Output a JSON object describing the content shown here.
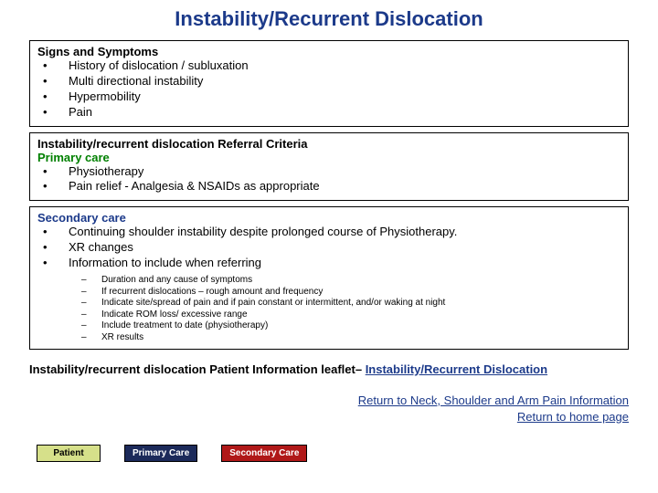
{
  "title": "Instability/Recurrent Dislocation",
  "box1": {
    "heading": "Signs and Symptoms",
    "items": [
      "History of dislocation / subluxation",
      "Multi directional instability",
      "Hypermobility",
      "Pain"
    ]
  },
  "box2": {
    "heading": "Instability/recurrent dislocation Referral Criteria",
    "subheading": "Primary care",
    "items": [
      "Physiotherapy",
      "Pain relief - Analgesia & NSAIDs as appropriate"
    ]
  },
  "box3": {
    "heading": "Secondary care",
    "items": [
      "Continuing shoulder instability despite prolonged course of Physiotherapy.",
      "XR changes",
      "Information to include when referring"
    ],
    "sub": [
      "Duration and any cause of symptoms",
      "If recurrent dislocations – rough amount and frequency",
      "Indicate site/spread of pain and if pain constant or intermittent, and/or waking at night",
      "Indicate ROM loss/ excessive range",
      "Include treatment to date (physiotherapy)",
      "XR results"
    ]
  },
  "leaflet": {
    "prefix": "Instability/recurrent dislocation Patient Information leaflet– ",
    "link": "Instability/Recurrent Dislocation"
  },
  "returns": {
    "line1": "Return to Neck, Shoulder and Arm Pain Information",
    "line2": "Return to home page"
  },
  "buttons": {
    "patient": "Patient",
    "primary": "Primary Care",
    "secondary": "Secondary Care"
  },
  "colors": {
    "title": "#1c3a8a",
    "green": "#008000",
    "link": "#1c3a8a",
    "btn_patient_bg": "#d6e08a",
    "btn_primary_bg": "#1c2a5a",
    "btn_secondary_bg": "#b01818"
  }
}
